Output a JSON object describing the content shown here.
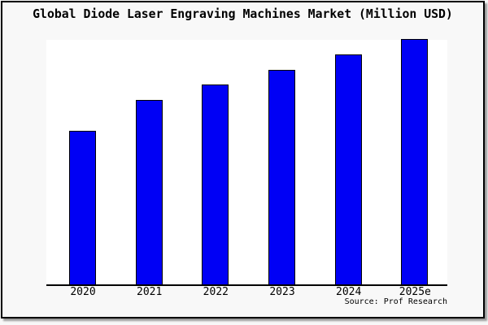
{
  "title": "Global Diode Laser Engraving Machines Market (Million USD)",
  "source": "Source: Prof Research",
  "colors": {
    "bar_fill": "#0000f5",
    "bar_edge": "#000000",
    "figure_background": "#f8f8f8",
    "plot_background": "#ffffff",
    "axis_line": "#000000",
    "frame_border": "#000000",
    "frame_shadow": "#999999"
  },
  "chart_data": {
    "type": "bar",
    "title": "Global Diode Laser Engraving Machines Market (Million USD)",
    "categories": [
      "2020",
      "2021",
      "2022",
      "2023",
      "2024",
      "2025e"
    ],
    "values": [
      150,
      180,
      195,
      210,
      225,
      240
    ],
    "xlabel": "",
    "ylabel": "",
    "ylim": [
      0,
      240
    ],
    "grid": false,
    "legend": false,
    "y_axis_labels_visible": false,
    "annotation": "Source: Prof Research",
    "note": "No y-axis ticks or gridlines are shown in the image; values are relative estimates scaled from bar pixel heights with 2025e set to the ylim max."
  }
}
